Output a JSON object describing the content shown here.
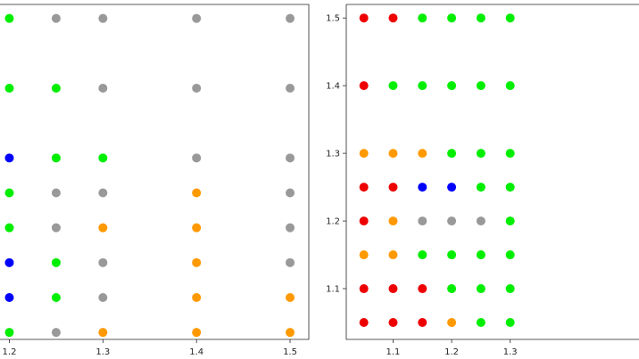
{
  "chart_data": [
    {
      "type": "scatter",
      "title": "",
      "xlabel": "",
      "ylabel": "",
      "grid": false,
      "xlim": [
        1.19,
        1.52
      ],
      "ylim": [
        1.04,
        1.52
      ],
      "x_ticks": [
        1.2,
        1.3,
        1.4,
        1.5
      ],
      "x_tick_labels": [
        "1.2",
        "1.3",
        "1.4",
        "1.5"
      ],
      "y_ticks": [],
      "y_tick_labels": [],
      "points": [
        {
          "x": 1.2,
          "y": 1.5,
          "color": "green"
        },
        {
          "x": 1.25,
          "y": 1.5,
          "color": "gray"
        },
        {
          "x": 1.3,
          "y": 1.5,
          "color": "gray"
        },
        {
          "x": 1.4,
          "y": 1.5,
          "color": "gray"
        },
        {
          "x": 1.5,
          "y": 1.5,
          "color": "gray"
        },
        {
          "x": 1.2,
          "y": 1.4,
          "color": "green"
        },
        {
          "x": 1.25,
          "y": 1.4,
          "color": "green"
        },
        {
          "x": 1.3,
          "y": 1.4,
          "color": "gray"
        },
        {
          "x": 1.4,
          "y": 1.4,
          "color": "gray"
        },
        {
          "x": 1.5,
          "y": 1.4,
          "color": "gray"
        },
        {
          "x": 1.2,
          "y": 1.3,
          "color": "blue"
        },
        {
          "x": 1.25,
          "y": 1.3,
          "color": "green"
        },
        {
          "x": 1.3,
          "y": 1.3,
          "color": "green"
        },
        {
          "x": 1.4,
          "y": 1.3,
          "color": "gray"
        },
        {
          "x": 1.5,
          "y": 1.3,
          "color": "gray"
        },
        {
          "x": 1.2,
          "y": 1.25,
          "color": "green"
        },
        {
          "x": 1.25,
          "y": 1.25,
          "color": "gray"
        },
        {
          "x": 1.3,
          "y": 1.25,
          "color": "gray"
        },
        {
          "x": 1.4,
          "y": 1.25,
          "color": "orange"
        },
        {
          "x": 1.5,
          "y": 1.25,
          "color": "gray"
        },
        {
          "x": 1.2,
          "y": 1.2,
          "color": "green"
        },
        {
          "x": 1.25,
          "y": 1.2,
          "color": "gray"
        },
        {
          "x": 1.3,
          "y": 1.2,
          "color": "orange"
        },
        {
          "x": 1.4,
          "y": 1.2,
          "color": "orange"
        },
        {
          "x": 1.5,
          "y": 1.2,
          "color": "gray"
        },
        {
          "x": 1.2,
          "y": 1.15,
          "color": "blue"
        },
        {
          "x": 1.25,
          "y": 1.15,
          "color": "green"
        },
        {
          "x": 1.3,
          "y": 1.15,
          "color": "gray"
        },
        {
          "x": 1.4,
          "y": 1.15,
          "color": "orange"
        },
        {
          "x": 1.5,
          "y": 1.15,
          "color": "gray"
        },
        {
          "x": 1.2,
          "y": 1.1,
          "color": "blue"
        },
        {
          "x": 1.25,
          "y": 1.1,
          "color": "green"
        },
        {
          "x": 1.3,
          "y": 1.1,
          "color": "gray"
        },
        {
          "x": 1.4,
          "y": 1.1,
          "color": "orange"
        },
        {
          "x": 1.5,
          "y": 1.1,
          "color": "orange"
        },
        {
          "x": 1.2,
          "y": 1.05,
          "color": "green"
        },
        {
          "x": 1.25,
          "y": 1.05,
          "color": "gray"
        },
        {
          "x": 1.3,
          "y": 1.05,
          "color": "orange"
        },
        {
          "x": 1.4,
          "y": 1.05,
          "color": "orange"
        },
        {
          "x": 1.5,
          "y": 1.05,
          "color": "orange"
        }
      ]
    },
    {
      "type": "scatter",
      "title": "",
      "xlabel": "",
      "ylabel": "",
      "grid": false,
      "xlim": [
        1.02,
        1.52
      ],
      "ylim": [
        1.025,
        1.52
      ],
      "x_ticks": [
        1.1,
        1.2,
        1.3
      ],
      "x_tick_labels": [
        "1.1",
        "1.2",
        "1.3"
      ],
      "y_ticks": [
        1.1,
        1.2,
        1.3,
        1.4,
        1.5
      ],
      "y_tick_labels": [
        "1.1",
        "1.2",
        "1.3",
        "1.4",
        "1.5"
      ],
      "points": [
        {
          "x": 1.05,
          "y": 1.5,
          "color": "red"
        },
        {
          "x": 1.1,
          "y": 1.5,
          "color": "red"
        },
        {
          "x": 1.15,
          "y": 1.5,
          "color": "green"
        },
        {
          "x": 1.2,
          "y": 1.5,
          "color": "green"
        },
        {
          "x": 1.25,
          "y": 1.5,
          "color": "green"
        },
        {
          "x": 1.3,
          "y": 1.5,
          "color": "green"
        },
        {
          "x": 1.05,
          "y": 1.4,
          "color": "red"
        },
        {
          "x": 1.1,
          "y": 1.4,
          "color": "green"
        },
        {
          "x": 1.15,
          "y": 1.4,
          "color": "green"
        },
        {
          "x": 1.2,
          "y": 1.4,
          "color": "green"
        },
        {
          "x": 1.25,
          "y": 1.4,
          "color": "green"
        },
        {
          "x": 1.3,
          "y": 1.4,
          "color": "green"
        },
        {
          "x": 1.05,
          "y": 1.3,
          "color": "orange"
        },
        {
          "x": 1.1,
          "y": 1.3,
          "color": "orange"
        },
        {
          "x": 1.15,
          "y": 1.3,
          "color": "orange"
        },
        {
          "x": 1.2,
          "y": 1.3,
          "color": "green"
        },
        {
          "x": 1.25,
          "y": 1.3,
          "color": "green"
        },
        {
          "x": 1.3,
          "y": 1.3,
          "color": "green"
        },
        {
          "x": 1.05,
          "y": 1.25,
          "color": "red"
        },
        {
          "x": 1.1,
          "y": 1.25,
          "color": "red"
        },
        {
          "x": 1.15,
          "y": 1.25,
          "color": "blue"
        },
        {
          "x": 1.2,
          "y": 1.25,
          "color": "blue"
        },
        {
          "x": 1.25,
          "y": 1.25,
          "color": "green"
        },
        {
          "x": 1.3,
          "y": 1.25,
          "color": "green"
        },
        {
          "x": 1.05,
          "y": 1.2,
          "color": "red"
        },
        {
          "x": 1.1,
          "y": 1.2,
          "color": "orange"
        },
        {
          "x": 1.15,
          "y": 1.2,
          "color": "gray"
        },
        {
          "x": 1.2,
          "y": 1.2,
          "color": "gray"
        },
        {
          "x": 1.25,
          "y": 1.2,
          "color": "gray"
        },
        {
          "x": 1.3,
          "y": 1.2,
          "color": "green"
        },
        {
          "x": 1.05,
          "y": 1.15,
          "color": "orange"
        },
        {
          "x": 1.1,
          "y": 1.15,
          "color": "orange"
        },
        {
          "x": 1.15,
          "y": 1.15,
          "color": "green"
        },
        {
          "x": 1.2,
          "y": 1.15,
          "color": "green"
        },
        {
          "x": 1.25,
          "y": 1.15,
          "color": "green"
        },
        {
          "x": 1.3,
          "y": 1.15,
          "color": "green"
        },
        {
          "x": 1.05,
          "y": 1.1,
          "color": "red"
        },
        {
          "x": 1.1,
          "y": 1.1,
          "color": "red"
        },
        {
          "x": 1.15,
          "y": 1.1,
          "color": "red"
        },
        {
          "x": 1.2,
          "y": 1.1,
          "color": "green"
        },
        {
          "x": 1.25,
          "y": 1.1,
          "color": "green"
        },
        {
          "x": 1.3,
          "y": 1.1,
          "color": "green"
        },
        {
          "x": 1.05,
          "y": 1.05,
          "color": "red"
        },
        {
          "x": 1.1,
          "y": 1.05,
          "color": "red"
        },
        {
          "x": 1.15,
          "y": 1.05,
          "color": "red"
        },
        {
          "x": 1.2,
          "y": 1.05,
          "color": "orange"
        },
        {
          "x": 1.25,
          "y": 1.05,
          "color": "green"
        },
        {
          "x": 1.3,
          "y": 1.05,
          "color": "green"
        }
      ]
    }
  ],
  "colors": {
    "green": "#00ee00",
    "gray": "#999999",
    "blue": "#0000ff",
    "orange": "#ff9900",
    "red": "#ee0000"
  }
}
